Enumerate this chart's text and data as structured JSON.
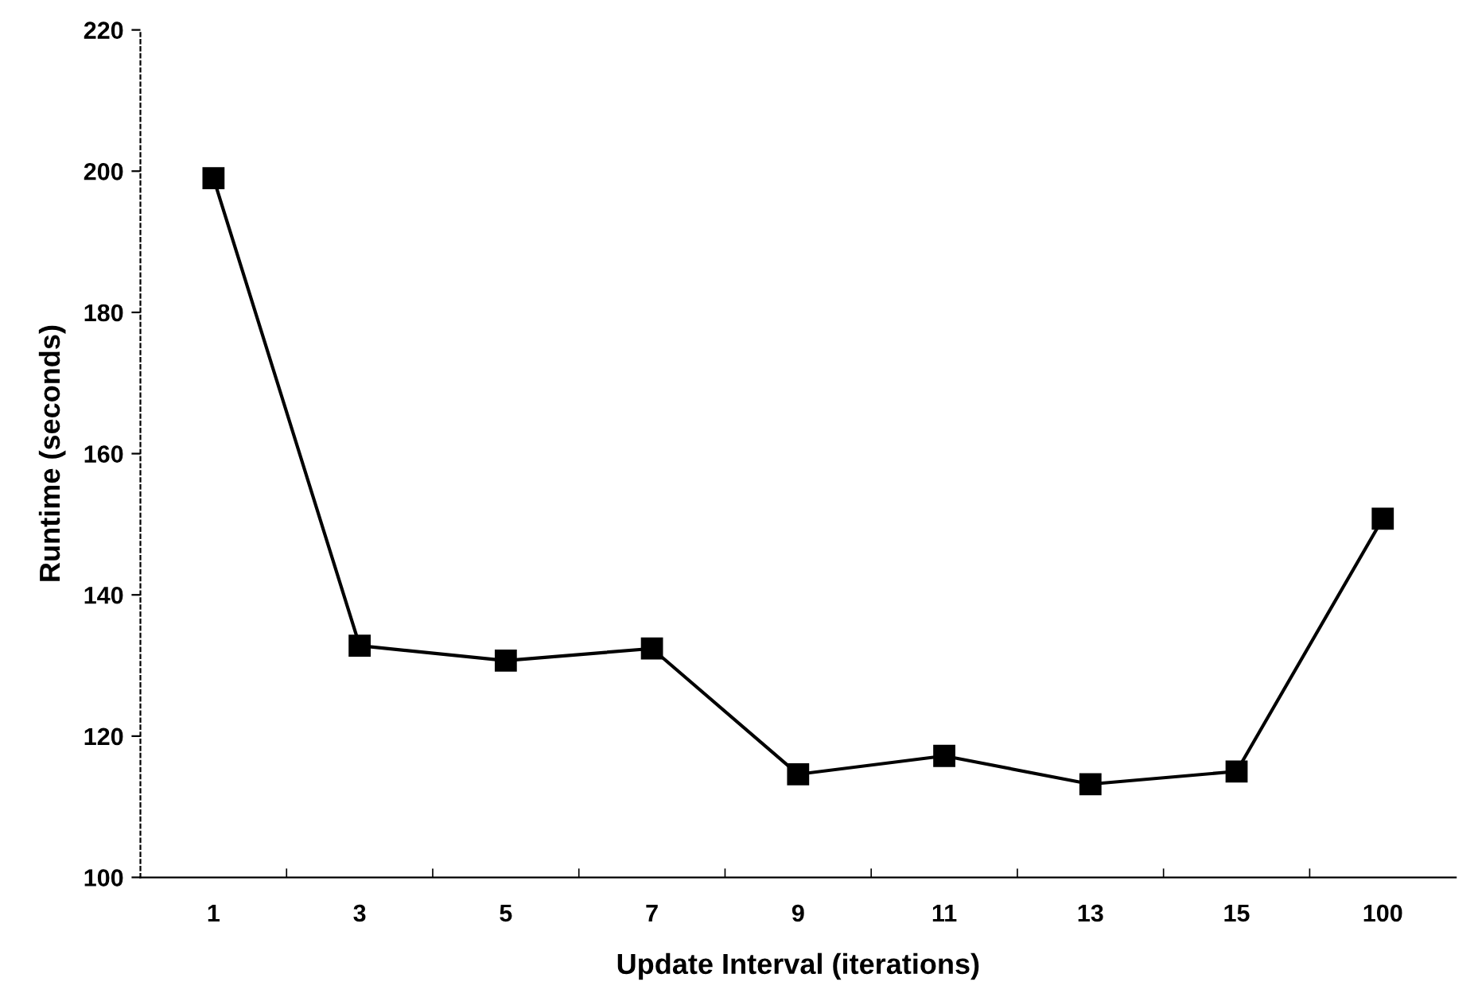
{
  "chart_data": {
    "type": "line",
    "xlabel": "Update Interval (iterations)",
    "ylabel": "Runtime (seconds)",
    "categories": [
      "1",
      "3",
      "5",
      "7",
      "9",
      "11",
      "13",
      "15",
      "100"
    ],
    "series": [
      {
        "color": "#000000",
        "values": [
          199,
          132.8,
          130.7,
          132.4,
          114.6,
          117.2,
          113.2,
          115,
          150.8
        ]
      }
    ],
    "ylim": [
      100,
      220
    ],
    "yticks": [
      100,
      120,
      140,
      160,
      180,
      200,
      220
    ],
    "marker": "square",
    "line_style": "solid",
    "grid": false
  }
}
